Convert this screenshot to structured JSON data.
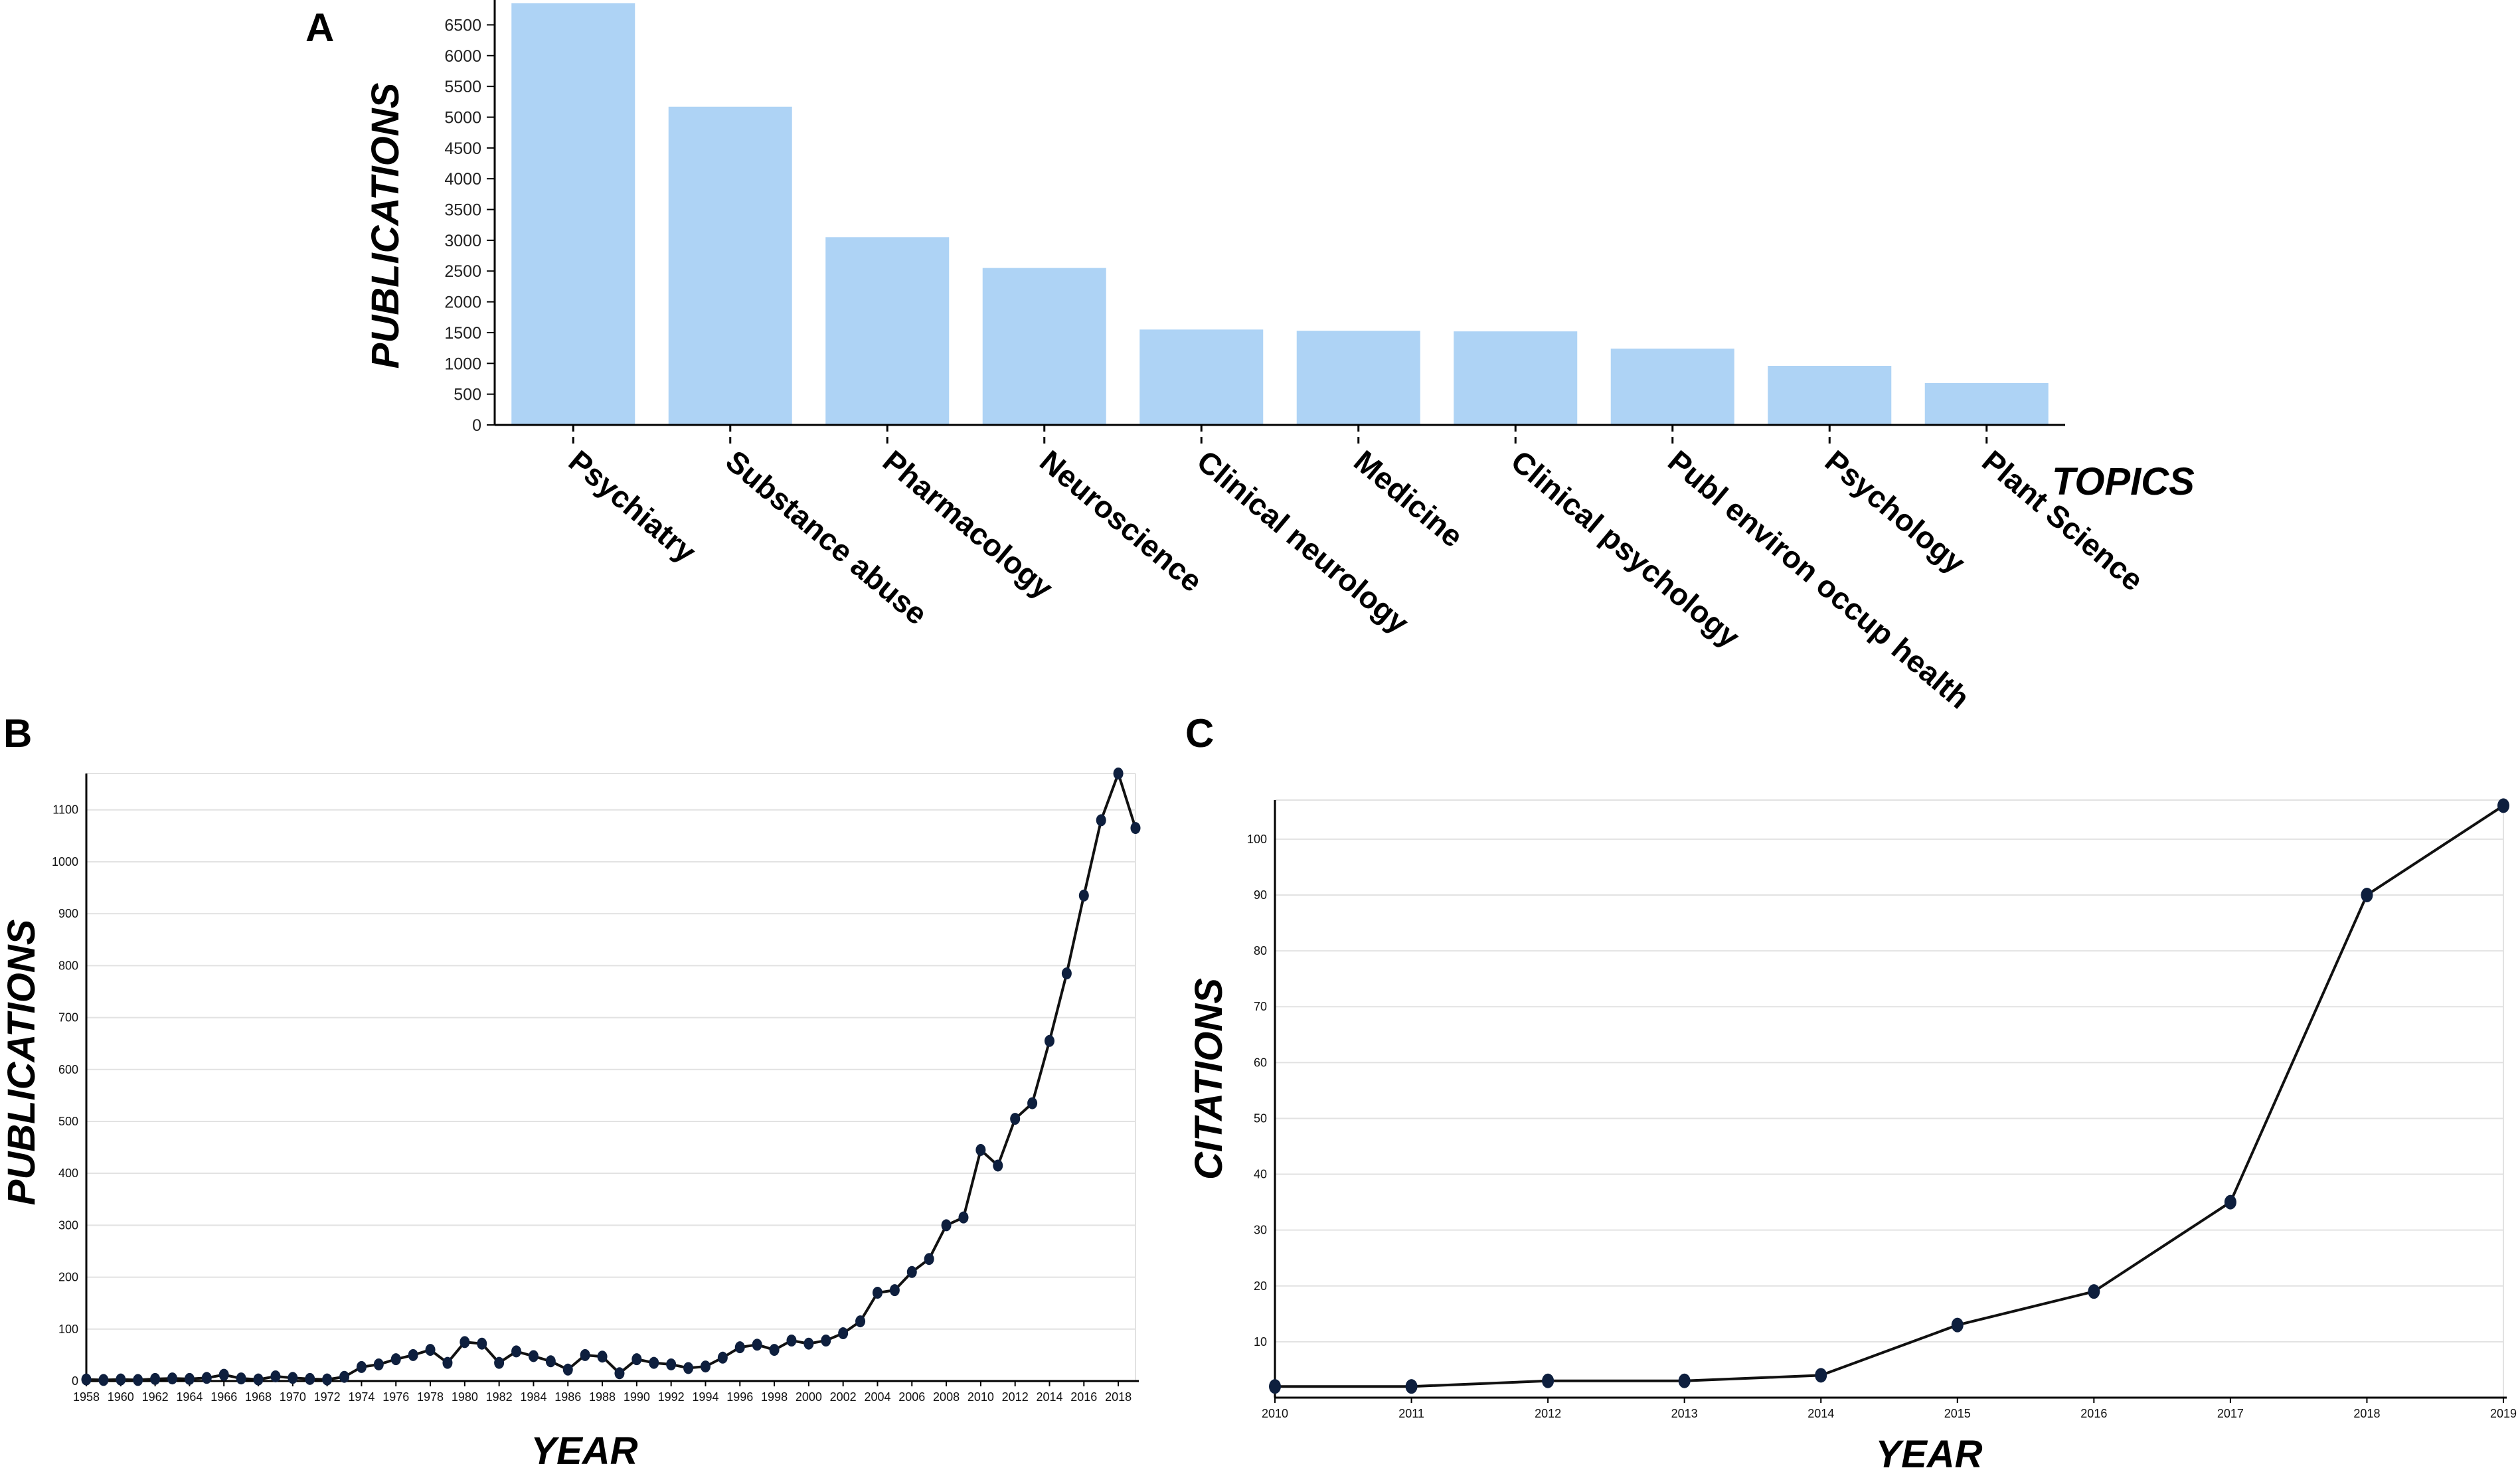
{
  "panels": {
    "a": "A",
    "b": "B",
    "c": "C"
  },
  "chart_data": [
    {
      "panel": "A",
      "type": "bar",
      "title": "",
      "xlabel": "TOPICS",
      "ylabel": "PUBLICATIONS",
      "categories": [
        "Psychiatry",
        "Substance abuse",
        "Pharmacology",
        "Neuroscience",
        "Clinical neurology",
        "Medicine",
        "Clinical psychology",
        "Publ environ occup health",
        "Psychology",
        "Plant Science"
      ],
      "values": [
        6850,
        5170,
        3050,
        2550,
        1550,
        1530,
        1520,
        1240,
        960,
        680
      ],
      "ylim": [
        0,
        6850
      ],
      "yticks": [
        0,
        500,
        1000,
        1500,
        2000,
        2500,
        3000,
        3500,
        4000,
        4500,
        5000,
        5500,
        6000,
        6500
      ],
      "color": "#aed3f5"
    },
    {
      "panel": "B",
      "type": "line",
      "xlabel": "YEAR",
      "ylabel": "PUBLICATIONS",
      "x": [
        1958,
        1959,
        1960,
        1961,
        1962,
        1963,
        1964,
        1965,
        1966,
        1967,
        1968,
        1969,
        1970,
        1971,
        1972,
        1973,
        1974,
        1975,
        1976,
        1977,
        1978,
        1979,
        1980,
        1981,
        1982,
        1983,
        1984,
        1985,
        1986,
        1987,
        1988,
        1989,
        1990,
        1991,
        1992,
        1993,
        1994,
        1995,
        1996,
        1997,
        1998,
        1999,
        2000,
        2001,
        2002,
        2003,
        2004,
        2005,
        2006,
        2007,
        2008,
        2009,
        2010,
        2011,
        2012,
        2013,
        2014,
        2015,
        2016,
        2017,
        2018,
        2019
      ],
      "values": [
        3,
        2,
        3,
        2,
        4,
        5,
        4,
        6,
        12,
        5,
        3,
        9,
        6,
        4,
        3,
        8,
        27,
        32,
        42,
        50,
        60,
        35,
        75,
        72,
        35,
        57,
        48,
        38,
        22,
        50,
        47,
        15,
        42,
        35,
        32,
        25,
        28,
        45,
        65,
        70,
        60,
        78,
        72,
        78,
        92,
        115,
        170,
        175,
        210,
        235,
        300,
        315,
        445,
        415,
        505,
        535,
        655,
        785,
        935,
        1080,
        1170,
        1065
      ],
      "xticks": [
        1958,
        1960,
        1962,
        1964,
        1966,
        1968,
        1970,
        1972,
        1974,
        1976,
        1978,
        1980,
        1982,
        1984,
        1986,
        1988,
        1990,
        1992,
        1994,
        1996,
        1998,
        2000,
        2002,
        2004,
        2006,
        2008,
        2010,
        2012,
        2014,
        2016,
        2018
      ],
      "yticks": [
        0,
        100,
        200,
        300,
        400,
        500,
        600,
        700,
        800,
        900,
        1000,
        1100
      ],
      "xlim": [
        1958,
        2019
      ],
      "ylim": [
        0,
        1170
      ]
    },
    {
      "panel": "C",
      "type": "line",
      "xlabel": "YEAR",
      "ylabel": "CITATIONS",
      "x": [
        2010,
        2011,
        2012,
        2013,
        2014,
        2015,
        2016,
        2017,
        2018,
        2019
      ],
      "values": [
        2,
        2,
        3,
        3,
        4,
        13,
        19,
        35,
        90,
        106
      ],
      "xticks": [
        2010,
        2011,
        2012,
        2013,
        2014,
        2015,
        2016,
        2017,
        2018,
        2019
      ],
      "yticks": [
        10,
        20,
        30,
        40,
        50,
        60,
        70,
        80,
        90,
        100
      ],
      "xlim": [
        2010,
        2019
      ],
      "ylim": [
        0,
        107
      ]
    }
  ]
}
